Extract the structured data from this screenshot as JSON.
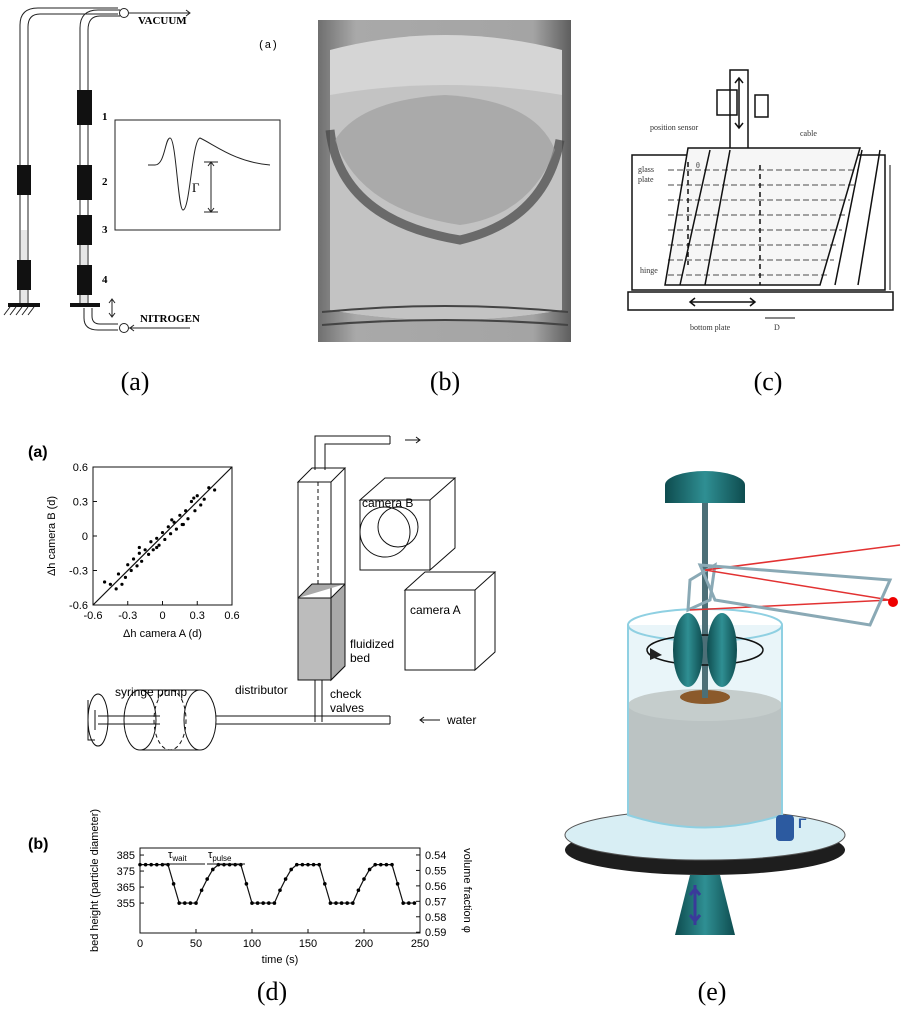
{
  "panel_a": {
    "caption": "(a)",
    "tag": "(a)",
    "vacuum": "VACUUM",
    "nitrogen": "NITROGEN",
    "stations": [
      "1",
      "2",
      "3",
      "4"
    ],
    "gamma": "Γ"
  },
  "panel_b": {
    "caption": "(b)"
  },
  "panel_c": {
    "caption": "(c)",
    "position_sensor": "position sensor",
    "cable": "cable",
    "glass_plate": [
      "glass",
      "plate"
    ],
    "theta": "θ",
    "hinge": "hinge",
    "bottom_plate": "bottom plate",
    "d": "D"
  },
  "panel_d": {
    "caption": "(d)",
    "tag_a": "(a)",
    "tag_b": "(b)",
    "camera_b": "camera B",
    "camera_a": "camera A",
    "fluidized_bed": [
      "fluidized",
      "bed"
    ],
    "syringe_pump": "syringe pump",
    "distributor": "distributor",
    "check_valves": [
      "check",
      "valves"
    ],
    "water": "water",
    "scatter": {
      "type": "scatter",
      "x_label": "Δh camera A (d)",
      "y_label": "Δh camera B (d)",
      "xlim": [
        -0.6,
        0.6
      ],
      "ylim": [
        -0.6,
        0.6
      ],
      "xticks": [
        -0.6,
        -0.3,
        0,
        0.3,
        0.6
      ],
      "yticks": [
        -0.6,
        -0.3,
        0,
        0.3,
        0.6
      ],
      "x": [
        -0.45,
        -0.4,
        -0.38,
        -0.32,
        -0.3,
        -0.27,
        -0.25,
        -0.22,
        -0.2,
        -0.18,
        -0.15,
        -0.12,
        -0.1,
        -0.08,
        -0.05,
        -0.03,
        0,
        0.02,
        0.05,
        0.07,
        0.1,
        0.12,
        0.15,
        0.17,
        0.2,
        0.22,
        0.25,
        0.28,
        0.3,
        0.33,
        0.36,
        0.4,
        -0.35,
        -0.2,
        -0.05,
        0.08,
        0.18,
        0.27,
        -0.5,
        0.45
      ],
      "y": [
        -0.42,
        -0.46,
        -0.33,
        -0.36,
        -0.25,
        -0.3,
        -0.2,
        -0.26,
        -0.15,
        -0.22,
        -0.12,
        -0.16,
        -0.05,
        -0.12,
        -0.02,
        -0.08,
        0.03,
        -0.03,
        0.08,
        0.02,
        0.12,
        0.06,
        0.18,
        0.1,
        0.22,
        0.15,
        0.3,
        0.22,
        0.35,
        0.27,
        0.32,
        0.42,
        -0.42,
        -0.1,
        -0.1,
        0.14,
        0.1,
        0.33,
        -0.4,
        0.4
      ]
    },
    "timeseries": {
      "type": "line",
      "x_label": "time (s)",
      "y_label": "bed height  (particle diameter)",
      "y2_label": "volume fraction φ",
      "xlim": [
        0,
        250
      ],
      "ylim": [
        336.3,
        389.4
      ],
      "y2lim": [
        0.5905,
        0.5355
      ],
      "xticks": [
        0,
        50,
        100,
        150,
        200,
        250
      ],
      "yticks": [
        355,
        365,
        375,
        385
      ],
      "y2ticks": [
        0.54,
        0.55,
        0.56,
        0.57,
        0.58,
        0.59
      ],
      "x": [
        0,
        5,
        10,
        15,
        20,
        25,
        30,
        35,
        40,
        45,
        50,
        55,
        60,
        65,
        70,
        75,
        80,
        85,
        90,
        95,
        100,
        105,
        110,
        115,
        120,
        125,
        130,
        135,
        140,
        145,
        150,
        155,
        160,
        165,
        170,
        175,
        180,
        185,
        190,
        195,
        200,
        205,
        210,
        215,
        220,
        225,
        230,
        235,
        240,
        245
      ],
      "y": [
        379,
        379,
        379,
        379,
        379,
        379,
        367,
        355,
        355,
        355,
        355,
        363,
        370,
        376,
        379,
        379,
        379,
        379,
        379,
        367,
        355,
        355,
        355,
        355,
        355,
        363,
        370,
        376,
        379,
        379,
        379,
        379,
        379,
        367,
        355,
        355,
        355,
        355,
        355,
        363,
        370,
        376,
        379,
        379,
        379,
        379,
        367,
        355,
        355,
        355
      ],
      "tau_wait": {
        "symbol": "τ",
        "subscript": "wait"
      },
      "tau_pulse": {
        "symbol": "τ",
        "subscript": "pulse"
      }
    }
  },
  "panel_e": {
    "caption": "(e)",
    "gamma": "Γ"
  }
}
